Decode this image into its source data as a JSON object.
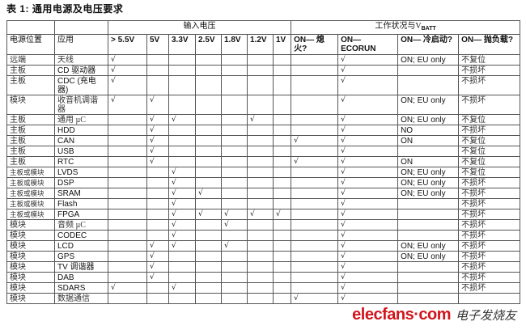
{
  "title": "表 1: 通用电源及电压要求",
  "header": {
    "group_input": "输入电压",
    "group_status_prefix": "工作状况与V",
    "group_status_sub": "BATT",
    "columns": [
      "电源位置",
      "应用",
      "> 5.5V",
      "5V",
      "3.3V",
      "2.5V",
      "1.8V",
      "1.2V",
      "1V",
      "ON— 熄火?",
      "ON— ECORUN",
      "ON— 冷启动?",
      "ON— 抛负载?"
    ]
  },
  "check_mark": "√",
  "rows": [
    [
      "远端",
      "天线",
      "√",
      "",
      "",
      "",
      "",
      "",
      "",
      "",
      "√",
      "ON; EU only",
      "不复位"
    ],
    [
      "主板",
      "CD 驱动器",
      "√",
      "",
      "",
      "",
      "",
      "",
      "",
      "",
      "√",
      "",
      "不损坏"
    ],
    [
      "主板",
      "CDC (充电器)",
      "√",
      "",
      "",
      "",
      "",
      "",
      "",
      "",
      "√",
      "",
      "不损坏"
    ],
    [
      "模块",
      "收音机调谐器",
      "√",
      "√",
      "",
      "",
      "",
      "",
      "",
      "",
      "√",
      "ON; EU only",
      "不损坏"
    ],
    [
      "主板",
      "通用 µC",
      "",
      "√",
      "√",
      "",
      "",
      "√",
      "",
      "",
      "√",
      "ON; EU only",
      "不复位"
    ],
    [
      "主板",
      "HDD",
      "",
      "√",
      "",
      "",
      "",
      "",
      "",
      "",
      "√",
      "NO",
      "不损坏"
    ],
    [
      "主板",
      "CAN",
      "",
      "√",
      "",
      "",
      "",
      "",
      "",
      "√",
      "√",
      "ON",
      "不复位"
    ],
    [
      "主板",
      "USB",
      "",
      "√",
      "",
      "",
      "",
      "",
      "",
      "",
      "√",
      "",
      "不复位"
    ],
    [
      "主板",
      "RTC",
      "",
      "√",
      "",
      "",
      "",
      "",
      "",
      "√",
      "√",
      "ON",
      "不复位"
    ],
    [
      "主板或模块",
      "LVDS",
      "",
      "",
      "√",
      "",
      "",
      "",
      "",
      "",
      "√",
      "ON; EU only",
      "不复位"
    ],
    [
      "主板或模块",
      "DSP",
      "",
      "",
      "√",
      "",
      "",
      "",
      "",
      "",
      "√",
      "ON; EU only",
      "不损坏"
    ],
    [
      "主板或模块",
      "SRAM",
      "",
      "",
      "√",
      "√",
      "",
      "",
      "",
      "",
      "√",
      "ON; EU only",
      "不损坏"
    ],
    [
      "主板或模块",
      "Flash",
      "",
      "",
      "√",
      "",
      "",
      "",
      "",
      "",
      "√",
      "",
      "不损坏"
    ],
    [
      "主板或模块",
      "FPGA",
      "",
      "",
      "√",
      "√",
      "√",
      "√",
      "√",
      "",
      "√",
      "",
      "不损坏"
    ],
    [
      "模块",
      "音频 µC",
      "",
      "",
      "√",
      "",
      "√",
      "",
      "",
      "",
      "√",
      "",
      "不损坏"
    ],
    [
      "模块",
      "CODEC",
      "",
      "",
      "√",
      "",
      "",
      "",
      "",
      "",
      "√",
      "",
      "不损坏"
    ],
    [
      "模块",
      "LCD",
      "",
      "√",
      "√",
      "",
      "√",
      "",
      "",
      "",
      "√",
      "ON; EU only",
      "不损坏"
    ],
    [
      "模块",
      "GPS",
      "",
      "√",
      "",
      "",
      "",
      "",
      "",
      "",
      "√",
      "ON; EU only",
      "不损坏"
    ],
    [
      "模块",
      "TV 调谐器",
      "",
      "√",
      "",
      "",
      "",
      "",
      "",
      "",
      "√",
      "",
      "不损坏"
    ],
    [
      "模块",
      "DAB",
      "",
      "√",
      "",
      "",
      "",
      "",
      "",
      "",
      "√",
      "",
      "不损坏"
    ],
    [
      "模块",
      "SDARS",
      "√",
      "",
      "√",
      "",
      "",
      "",
      "",
      "",
      "√",
      "",
      "不损坏"
    ],
    [
      "模块",
      "数据通信",
      "",
      "",
      "",
      "",
      "",
      "",
      "",
      "√",
      "√",
      "",
      ""
    ]
  ],
  "watermark": {
    "logo_text": "elecfans·com",
    "logo_cn": "电子发烧友",
    "color": "#d4141c"
  }
}
